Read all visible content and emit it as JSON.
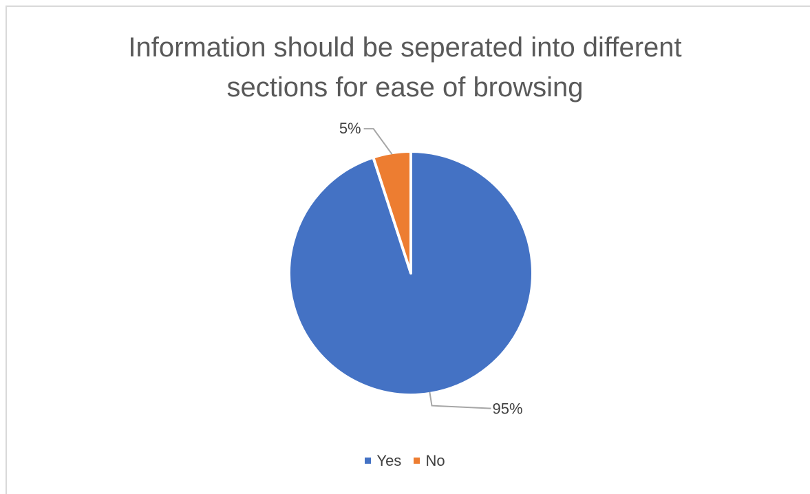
{
  "chart_data": {
    "type": "pie",
    "title_lines": [
      "Information should be seperated into different",
      "sections for ease of browsing"
    ],
    "categories": [
      "Yes",
      "No"
    ],
    "values": [
      95,
      5
    ],
    "data_labels": [
      "95%",
      "5%"
    ],
    "colors": [
      "#4472C4",
      "#ED7D31"
    ],
    "legend_position": "bottom"
  }
}
